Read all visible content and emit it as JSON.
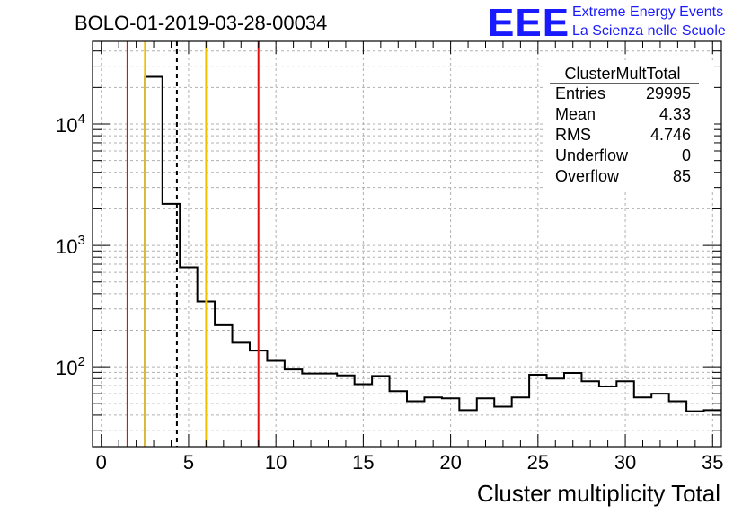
{
  "chart_data": {
    "type": "bar",
    "title": "BOLO-01-2019-03-28-00034",
    "xlabel": "Cluster multiplicity Total",
    "ylabel": "",
    "x_range": [
      -0.5,
      35.5
    ],
    "y_range": [
      22,
      48000
    ],
    "y_scale": "log",
    "grid": true,
    "bins": {
      "edges_start": 2.5,
      "width": 1,
      "values": [
        24500,
        2200,
        660,
        345,
        220,
        158,
        136,
        112,
        95,
        88,
        88,
        85,
        72,
        84,
        63,
        52,
        56,
        55,
        44,
        55,
        47,
        56,
        86,
        80,
        89,
        76,
        69,
        76,
        56,
        60,
        52,
        43,
        44
      ]
    },
    "x_ticks": [
      0,
      5,
      10,
      15,
      20,
      25,
      30,
      35
    ],
    "x_tick_labels": [
      "0",
      "5",
      "10",
      "15",
      "20",
      "25",
      "30",
      "35"
    ],
    "y_major_ticks": [
      100,
      1000,
      10000
    ],
    "y_tick_labels": [
      {
        "base": "10",
        "exp": "2"
      },
      {
        "base": "10",
        "exp": "3"
      },
      {
        "base": "10",
        "exp": "4"
      }
    ],
    "vertical_lines": [
      {
        "x": 1.5,
        "color": "#e01010",
        "style": "solid"
      },
      {
        "x": 2.5,
        "color": "#f0c000",
        "style": "solid"
      },
      {
        "x": 4.33,
        "color": "#000000",
        "style": "dashed"
      },
      {
        "x": 6.0,
        "color": "#f0c000",
        "style": "solid"
      },
      {
        "x": 9.0,
        "color": "#e01010",
        "style": "solid"
      }
    ],
    "stats_box": {
      "name": "ClusterMultTotal",
      "rows": [
        {
          "label": "Entries",
          "value": "29995"
        },
        {
          "label": "Mean",
          "value": "4.33"
        },
        {
          "label": "RMS",
          "value": "4.746"
        },
        {
          "label": "Underflow",
          "value": "0"
        },
        {
          "label": "Overflow",
          "value": "85"
        }
      ]
    }
  },
  "logo": {
    "mark": "EEE",
    "line1": "Extreme Energy Events",
    "line2": "La Scienza nelle Scuole"
  }
}
